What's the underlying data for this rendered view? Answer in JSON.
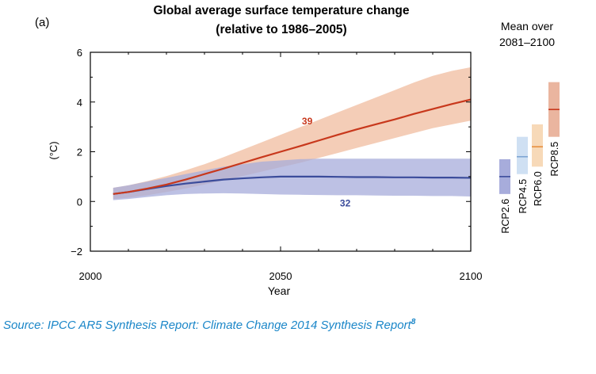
{
  "chart_data": {
    "type": "line",
    "panel_label": "(a)",
    "title": "Global average surface temperature change",
    "subtitle": "(relative to 1986–2005)",
    "xlabel": "Year",
    "ylabel": "(°C)",
    "xlim": [
      2000,
      2100
    ],
    "ylim": [
      -2,
      6
    ],
    "xticks": [
      2000,
      2050,
      2100
    ],
    "xtick_labels": [
      "2000",
      "2050",
      "2100"
    ],
    "yticks": [
      -2,
      0,
      2,
      4,
      6
    ],
    "ytick_labels": [
      "−2",
      "0",
      "2",
      "4",
      "6"
    ],
    "series": [
      {
        "name": "RCP2.6",
        "color": "#3b4c9b",
        "band_color": "#a7acdb",
        "model_count": "32",
        "x": [
          2006,
          2010,
          2015,
          2020,
          2025,
          2030,
          2035,
          2040,
          2045,
          2050,
          2055,
          2060,
          2065,
          2070,
          2075,
          2080,
          2085,
          2090,
          2095,
          2100
        ],
        "mean": [
          0.3,
          0.38,
          0.5,
          0.62,
          0.72,
          0.8,
          0.88,
          0.93,
          0.97,
          1.0,
          1.0,
          1.0,
          0.99,
          0.98,
          0.98,
          0.97,
          0.97,
          0.96,
          0.96,
          0.95
        ],
        "lower": [
          0.05,
          0.1,
          0.18,
          0.25,
          0.3,
          0.32,
          0.33,
          0.32,
          0.3,
          0.28,
          0.27,
          0.26,
          0.25,
          0.25,
          0.24,
          0.23,
          0.23,
          0.22,
          0.22,
          0.2
        ],
        "upper": [
          0.55,
          0.65,
          0.8,
          0.95,
          1.1,
          1.25,
          1.4,
          1.5,
          1.6,
          1.65,
          1.7,
          1.72,
          1.72,
          1.72,
          1.72,
          1.72,
          1.72,
          1.72,
          1.72,
          1.72
        ]
      },
      {
        "name": "RCP8.5",
        "color": "#c8381c",
        "band_color": "#f2c4aa",
        "model_count": "39",
        "x": [
          2006,
          2010,
          2015,
          2020,
          2025,
          2030,
          2035,
          2040,
          2045,
          2050,
          2055,
          2060,
          2065,
          2070,
          2075,
          2080,
          2085,
          2090,
          2095,
          2100
        ],
        "mean": [
          0.3,
          0.38,
          0.52,
          0.68,
          0.88,
          1.1,
          1.32,
          1.55,
          1.78,
          2.0,
          2.22,
          2.45,
          2.68,
          2.9,
          3.1,
          3.3,
          3.52,
          3.72,
          3.92,
          4.1
        ],
        "lower": [
          0.1,
          0.15,
          0.25,
          0.38,
          0.52,
          0.68,
          0.85,
          1.02,
          1.2,
          1.38,
          1.55,
          1.75,
          1.95,
          2.15,
          2.35,
          2.55,
          2.75,
          2.95,
          3.1,
          3.25
        ],
        "upper": [
          0.55,
          0.65,
          0.82,
          1.02,
          1.25,
          1.5,
          1.78,
          2.08,
          2.38,
          2.68,
          2.98,
          3.28,
          3.58,
          3.88,
          4.18,
          4.48,
          4.78,
          5.05,
          5.25,
          5.4
        ]
      }
    ],
    "model_count_labels": [
      {
        "series": "RCP8.5",
        "text": "39",
        "x": 2057,
        "y": 3.1
      },
      {
        "series": "RCP2.6",
        "text": "32",
        "x": 2067,
        "y": -0.2
      }
    ],
    "side_panel": {
      "title_lines": [
        "Mean over",
        "2081–2100"
      ],
      "bars": [
        {
          "name": "RCP2.6",
          "low": 0.3,
          "mean": 1.0,
          "high": 1.7,
          "fill": "#a7acdb",
          "line": "#3b4c9b"
        },
        {
          "name": "RCP4.5",
          "low": 1.1,
          "mean": 1.8,
          "high": 2.6,
          "fill": "#cfe0f3",
          "line": "#7ea6d4"
        },
        {
          "name": "RCP6.0",
          "low": 1.4,
          "mean": 2.2,
          "high": 3.1,
          "fill": "#f7d9b8",
          "line": "#e8903e"
        },
        {
          "name": "RCP8.5",
          "low": 2.6,
          "mean": 3.7,
          "high": 4.8,
          "fill": "#eab59f",
          "line": "#c8381c"
        }
      ]
    }
  },
  "source": {
    "text": "Source: IPCC AR5 Synthesis Report: Climate Change 2014 Synthesis Report",
    "footnote": "8"
  }
}
